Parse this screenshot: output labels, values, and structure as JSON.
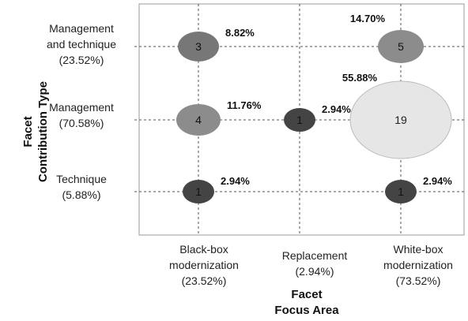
{
  "chart_data": {
    "type": "bubble",
    "x_axis": {
      "title_line1": "Facet",
      "title_line2": "Focus Area",
      "categories": [
        {
          "line1": "Black-box",
          "line2": "modernization",
          "pct": "(23.52%)"
        },
        {
          "line1": "Replacement",
          "line2": "",
          "pct": "(2.94%)"
        },
        {
          "line1": "White-box",
          "line2": "modernization",
          "pct": "(73.52%)"
        }
      ]
    },
    "y_axis": {
      "title_line1": "Facet",
      "title_line2": "Contribution Type",
      "categories": [
        {
          "line1": "Technique",
          "line2": "",
          "pct": "(5.88%)"
        },
        {
          "line1": "Management",
          "line2": "",
          "pct": "(70.58%)"
        },
        {
          "line1": "Management",
          "line2": "and technique",
          "pct": "(23.52%)"
        }
      ]
    },
    "bubbles": [
      {
        "x": 0,
        "y": 2,
        "count": 3,
        "label": "8.82%",
        "label_pos": "right",
        "color": "#777777"
      },
      {
        "x": 2,
        "y": 2,
        "count": 5,
        "label": "14.70%",
        "label_pos": "top-left",
        "color": "#8c8c8c"
      },
      {
        "x": 0,
        "y": 1,
        "count": 4,
        "label": "11.76%",
        "label_pos": "right",
        "color": "#8c8c8c"
      },
      {
        "x": 1,
        "y": 1,
        "count": 1,
        "label": "2.94%",
        "label_pos": "right",
        "color": "#444444"
      },
      {
        "x": 2,
        "y": 1,
        "count": 19,
        "label": "55.88%",
        "label_pos": "top-left",
        "color": "#e6e6e6"
      },
      {
        "x": 0,
        "y": 0,
        "count": 1,
        "label": "2.94%",
        "label_pos": "right",
        "color": "#444444"
      },
      {
        "x": 2,
        "y": 0,
        "count": 1,
        "label": "2.94%",
        "label_pos": "right",
        "color": "#444444"
      }
    ]
  }
}
